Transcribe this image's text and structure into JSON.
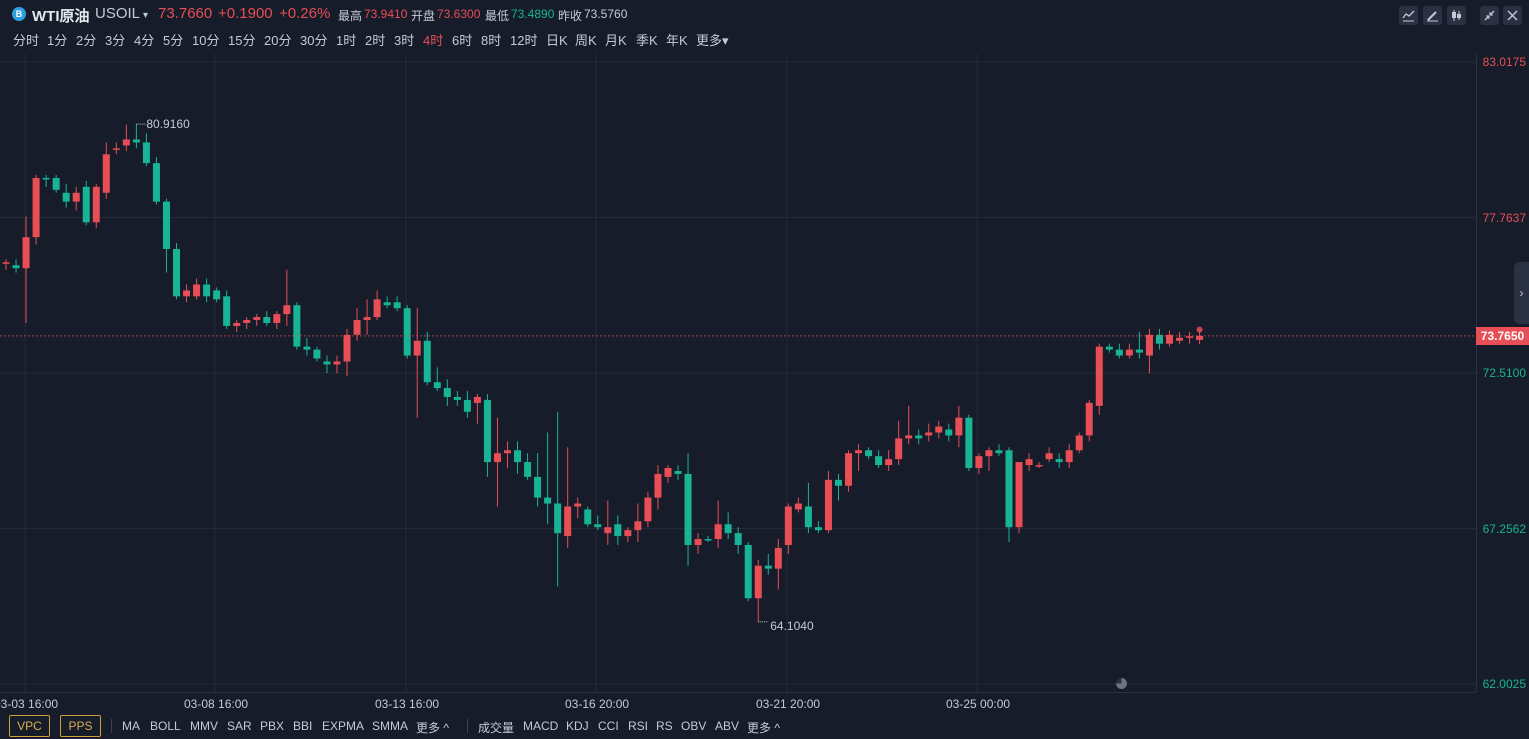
{
  "header": {
    "symbol_icon": "B",
    "name": "WTI原油",
    "code": "USOIL",
    "price": "73.7660",
    "change": "+0.1900",
    "change_pct": "+0.26%",
    "high_label": "最高",
    "high": "73.9410",
    "open_label": "开盘",
    "open": "73.6300",
    "low_label": "最低",
    "low": "73.4890",
    "prev_label": "昨收",
    "prev": "73.5760",
    "tools": [
      "line-chart-icon",
      "pencil-icon",
      "candle-type-icon",
      "collapse-icon",
      "close-icon"
    ]
  },
  "periods": [
    "分时",
    "1分",
    "2分",
    "3分",
    "4分",
    "5分",
    "10分",
    "15分",
    "20分",
    "30分",
    "1时",
    "2时",
    "3时",
    "4时",
    "6时",
    "8时",
    "12时",
    "日K",
    "周K",
    "月K",
    "季K",
    "年K",
    "更多"
  ],
  "active_period": "4时",
  "price_axis": [
    "83.0175",
    "77.7637",
    "72.5100",
    "67.2562",
    "62.0025"
  ],
  "current_price_badge": "73.7650",
  "time_axis": [
    "03-03 16:00",
    "03-08 16:00",
    "03-13 16:00",
    "03-16 20:00",
    "03-21 20:00",
    "03-25 00:00"
  ],
  "markers": {
    "high": "80.9160",
    "low": "64.1040"
  },
  "bottom": {
    "badges": [
      "VPC",
      "PPS"
    ],
    "main_indicators": [
      "MA",
      "BOLL",
      "MMV",
      "SAR",
      "PBX",
      "BBI",
      "EXPMA",
      "SMMA",
      "更多"
    ],
    "sub_indicators": [
      "成交量",
      "MACD",
      "KDJ",
      "CCI",
      "RSI",
      "RS",
      "OBV",
      "ABV",
      "更多"
    ]
  },
  "colors": {
    "up": "#e84e55",
    "down": "#18b495",
    "bg": "#161c2a",
    "grid": "#232b3a"
  },
  "chart_data": {
    "type": "candlestick",
    "ylim": [
      62.0025,
      83.0175
    ],
    "candles": [
      {
        "o": 76.2,
        "h": 76.35,
        "l": 76.0,
        "c": 76.25
      },
      {
        "o": 76.15,
        "h": 76.35,
        "l": 75.9,
        "c": 76.05
      },
      {
        "o": 76.05,
        "h": 77.8,
        "l": 74.2,
        "c": 77.1
      },
      {
        "o": 77.1,
        "h": 79.2,
        "l": 76.85,
        "c": 79.1
      },
      {
        "o": 79.1,
        "h": 79.2,
        "l": 78.8,
        "c": 79.05
      },
      {
        "o": 79.1,
        "h": 79.2,
        "l": 78.6,
        "c": 78.7
      },
      {
        "o": 78.6,
        "h": 78.9,
        "l": 78.1,
        "c": 78.3
      },
      {
        "o": 78.3,
        "h": 78.8,
        "l": 78.0,
        "c": 78.6
      },
      {
        "o": 78.8,
        "h": 79.0,
        "l": 77.5,
        "c": 77.6
      },
      {
        "o": 77.6,
        "h": 78.9,
        "l": 77.4,
        "c": 78.8
      },
      {
        "o": 78.6,
        "h": 80.3,
        "l": 78.4,
        "c": 79.9
      },
      {
        "o": 80.1,
        "h": 80.3,
        "l": 79.9,
        "c": 80.1
      },
      {
        "o": 80.2,
        "h": 80.9,
        "l": 80.0,
        "c": 80.4
      },
      {
        "o": 80.4,
        "h": 80.92,
        "l": 80.1,
        "c": 80.3
      },
      {
        "o": 80.3,
        "h": 80.6,
        "l": 79.5,
        "c": 79.6
      },
      {
        "o": 79.6,
        "h": 79.8,
        "l": 78.2,
        "c": 78.3
      },
      {
        "o": 78.3,
        "h": 78.4,
        "l": 75.9,
        "c": 76.7
      },
      {
        "o": 76.7,
        "h": 76.9,
        "l": 75.0,
        "c": 75.1
      },
      {
        "o": 75.1,
        "h": 75.5,
        "l": 74.9,
        "c": 75.3
      },
      {
        "o": 75.1,
        "h": 75.7,
        "l": 75.0,
        "c": 75.5
      },
      {
        "o": 75.5,
        "h": 75.7,
        "l": 74.9,
        "c": 75.1
      },
      {
        "o": 75.3,
        "h": 75.4,
        "l": 74.9,
        "c": 75.0
      },
      {
        "o": 75.1,
        "h": 75.3,
        "l": 74.0,
        "c": 74.1
      },
      {
        "o": 74.1,
        "h": 74.3,
        "l": 73.9,
        "c": 74.2
      },
      {
        "o": 74.2,
        "h": 74.4,
        "l": 74.0,
        "c": 74.3
      },
      {
        "o": 74.3,
        "h": 74.5,
        "l": 74.1,
        "c": 74.4
      },
      {
        "o": 74.4,
        "h": 74.6,
        "l": 74.1,
        "c": 74.2
      },
      {
        "o": 74.2,
        "h": 74.6,
        "l": 74.0,
        "c": 74.5
      },
      {
        "o": 74.5,
        "h": 76.0,
        "l": 74.1,
        "c": 74.8
      },
      {
        "o": 74.8,
        "h": 74.9,
        "l": 73.3,
        "c": 73.4
      },
      {
        "o": 73.4,
        "h": 73.7,
        "l": 73.1,
        "c": 73.3
      },
      {
        "o": 73.3,
        "h": 73.4,
        "l": 72.9,
        "c": 73.0
      },
      {
        "o": 72.9,
        "h": 73.1,
        "l": 72.5,
        "c": 72.8
      },
      {
        "o": 72.8,
        "h": 73.1,
        "l": 72.5,
        "c": 72.9
      },
      {
        "o": 72.9,
        "h": 74.0,
        "l": 72.4,
        "c": 73.8
      },
      {
        "o": 73.8,
        "h": 74.7,
        "l": 73.6,
        "c": 74.3
      },
      {
        "o": 74.3,
        "h": 75.0,
        "l": 73.8,
        "c": 74.4
      },
      {
        "o": 74.4,
        "h": 75.3,
        "l": 74.3,
        "c": 75.0
      },
      {
        "o": 74.9,
        "h": 75.1,
        "l": 74.7,
        "c": 74.8
      },
      {
        "o": 74.9,
        "h": 75.1,
        "l": 74.6,
        "c": 74.7
      },
      {
        "o": 74.7,
        "h": 74.8,
        "l": 73.0,
        "c": 73.1
      },
      {
        "o": 73.1,
        "h": 74.7,
        "l": 71.0,
        "c": 73.6
      },
      {
        "o": 73.6,
        "h": 73.9,
        "l": 72.1,
        "c": 72.2
      },
      {
        "o": 72.2,
        "h": 72.7,
        "l": 71.9,
        "c": 72.0
      },
      {
        "o": 72.0,
        "h": 72.3,
        "l": 71.4,
        "c": 71.7
      },
      {
        "o": 71.7,
        "h": 71.9,
        "l": 71.4,
        "c": 71.6
      },
      {
        "o": 71.6,
        "h": 71.9,
        "l": 71.0,
        "c": 71.2
      },
      {
        "o": 71.5,
        "h": 71.8,
        "l": 70.8,
        "c": 71.7
      },
      {
        "o": 71.6,
        "h": 71.8,
        "l": 69.0,
        "c": 69.5
      },
      {
        "o": 69.5,
        "h": 71.0,
        "l": 68.0,
        "c": 69.8
      },
      {
        "o": 69.8,
        "h": 70.2,
        "l": 69.3,
        "c": 69.9
      },
      {
        "o": 69.9,
        "h": 70.2,
        "l": 69.1,
        "c": 69.5
      },
      {
        "o": 69.5,
        "h": 69.8,
        "l": 68.9,
        "c": 69.0
      },
      {
        "o": 69.0,
        "h": 69.8,
        "l": 68.0,
        "c": 68.3
      },
      {
        "o": 68.3,
        "h": 70.5,
        "l": 67.4,
        "c": 68.1
      },
      {
        "o": 68.1,
        "h": 71.2,
        "l": 65.3,
        "c": 67.1
      },
      {
        "o": 67.0,
        "h": 70.0,
        "l": 66.6,
        "c": 68.0
      },
      {
        "o": 68.0,
        "h": 68.3,
        "l": 67.6,
        "c": 68.1
      },
      {
        "o": 67.9,
        "h": 68.0,
        "l": 67.3,
        "c": 67.4
      },
      {
        "o": 67.4,
        "h": 67.7,
        "l": 67.2,
        "c": 67.3
      },
      {
        "o": 67.1,
        "h": 68.2,
        "l": 66.7,
        "c": 67.3
      },
      {
        "o": 67.4,
        "h": 67.7,
        "l": 66.7,
        "c": 67.0
      },
      {
        "o": 67.0,
        "h": 67.3,
        "l": 66.8,
        "c": 67.2
      },
      {
        "o": 67.2,
        "h": 68.1,
        "l": 66.8,
        "c": 67.5
      },
      {
        "o": 67.5,
        "h": 68.5,
        "l": 67.3,
        "c": 68.3
      },
      {
        "o": 68.3,
        "h": 69.4,
        "l": 67.9,
        "c": 69.1
      },
      {
        "o": 69.0,
        "h": 69.4,
        "l": 68.8,
        "c": 69.3
      },
      {
        "o": 69.2,
        "h": 69.4,
        "l": 68.9,
        "c": 69.1
      },
      {
        "o": 69.1,
        "h": 69.8,
        "l": 66.0,
        "c": 66.7
      },
      {
        "o": 66.7,
        "h": 67.1,
        "l": 66.4,
        "c": 66.9
      },
      {
        "o": 66.9,
        "h": 67.0,
        "l": 66.8,
        "c": 66.85
      },
      {
        "o": 66.9,
        "h": 68.2,
        "l": 66.6,
        "c": 67.4
      },
      {
        "o": 67.4,
        "h": 67.8,
        "l": 66.9,
        "c": 67.1
      },
      {
        "o": 67.1,
        "h": 67.3,
        "l": 66.4,
        "c": 66.7
      },
      {
        "o": 66.7,
        "h": 66.8,
        "l": 64.8,
        "c": 64.9
      },
      {
        "o": 64.9,
        "h": 66.2,
        "l": 64.1,
        "c": 66.0
      },
      {
        "o": 66.0,
        "h": 66.4,
        "l": 65.7,
        "c": 65.9
      },
      {
        "o": 65.9,
        "h": 66.9,
        "l": 65.2,
        "c": 66.6
      },
      {
        "o": 66.7,
        "h": 68.1,
        "l": 66.4,
        "c": 68.0
      },
      {
        "o": 67.9,
        "h": 68.3,
        "l": 67.8,
        "c": 68.1
      },
      {
        "o": 68.0,
        "h": 68.8,
        "l": 67.1,
        "c": 67.3
      },
      {
        "o": 67.3,
        "h": 67.5,
        "l": 67.1,
        "c": 67.2
      },
      {
        "o": 67.2,
        "h": 69.2,
        "l": 67.1,
        "c": 68.9
      },
      {
        "o": 68.9,
        "h": 69.1,
        "l": 68.2,
        "c": 68.7
      },
      {
        "o": 68.7,
        "h": 69.9,
        "l": 68.5,
        "c": 69.8
      },
      {
        "o": 69.8,
        "h": 70.1,
        "l": 69.2,
        "c": 69.9
      },
      {
        "o": 69.9,
        "h": 70.0,
        "l": 69.6,
        "c": 69.7
      },
      {
        "o": 69.7,
        "h": 69.9,
        "l": 69.3,
        "c": 69.4
      },
      {
        "o": 69.4,
        "h": 69.9,
        "l": 69.2,
        "c": 69.6
      },
      {
        "o": 69.6,
        "h": 70.9,
        "l": 69.4,
        "c": 70.3
      },
      {
        "o": 70.3,
        "h": 71.4,
        "l": 70.1,
        "c": 70.4
      },
      {
        "o": 70.4,
        "h": 70.6,
        "l": 70.1,
        "c": 70.3
      },
      {
        "o": 70.4,
        "h": 70.8,
        "l": 70.2,
        "c": 70.5
      },
      {
        "o": 70.5,
        "h": 70.9,
        "l": 70.3,
        "c": 70.7
      },
      {
        "o": 70.6,
        "h": 70.8,
        "l": 70.2,
        "c": 70.4
      },
      {
        "o": 70.4,
        "h": 71.4,
        "l": 70.0,
        "c": 71.0
      },
      {
        "o": 71.0,
        "h": 71.1,
        "l": 69.2,
        "c": 69.3
      },
      {
        "o": 69.3,
        "h": 69.8,
        "l": 69.1,
        "c": 69.7
      },
      {
        "o": 69.7,
        "h": 70.0,
        "l": 69.2,
        "c": 69.9
      },
      {
        "o": 69.9,
        "h": 70.1,
        "l": 69.7,
        "c": 69.8
      },
      {
        "o": 69.9,
        "h": 70.0,
        "l": 66.8,
        "c": 67.3
      },
      {
        "o": 67.3,
        "h": 69.5,
        "l": 67.1,
        "c": 69.5
      },
      {
        "o": 69.4,
        "h": 69.8,
        "l": 69.2,
        "c": 69.6
      },
      {
        "o": 69.4,
        "h": 69.5,
        "l": 69.3,
        "c": 69.4
      },
      {
        "o": 69.6,
        "h": 70.0,
        "l": 69.5,
        "c": 69.8
      },
      {
        "o": 69.6,
        "h": 69.8,
        "l": 69.3,
        "c": 69.5
      },
      {
        "o": 69.5,
        "h": 70.1,
        "l": 69.3,
        "c": 69.9
      },
      {
        "o": 69.9,
        "h": 70.5,
        "l": 69.8,
        "c": 70.4
      },
      {
        "o": 70.4,
        "h": 71.6,
        "l": 70.2,
        "c": 71.5
      },
      {
        "o": 71.4,
        "h": 73.5,
        "l": 71.1,
        "c": 73.4
      },
      {
        "o": 73.4,
        "h": 73.5,
        "l": 73.2,
        "c": 73.3
      },
      {
        "o": 73.3,
        "h": 73.5,
        "l": 73.0,
        "c": 73.1
      },
      {
        "o": 73.1,
        "h": 73.5,
        "l": 73.0,
        "c": 73.3
      },
      {
        "o": 73.3,
        "h": 73.9,
        "l": 73.0,
        "c": 73.2
      },
      {
        "o": 73.1,
        "h": 74.0,
        "l": 72.5,
        "c": 73.8
      },
      {
        "o": 73.8,
        "h": 74.0,
        "l": 73.3,
        "c": 73.5
      },
      {
        "o": 73.5,
        "h": 73.94,
        "l": 73.4,
        "c": 73.8
      },
      {
        "o": 73.6,
        "h": 73.9,
        "l": 73.5,
        "c": 73.7
      },
      {
        "o": 73.7,
        "h": 73.9,
        "l": 73.5,
        "c": 73.75
      },
      {
        "o": 73.63,
        "h": 73.94,
        "l": 73.49,
        "c": 73.766
      }
    ]
  }
}
